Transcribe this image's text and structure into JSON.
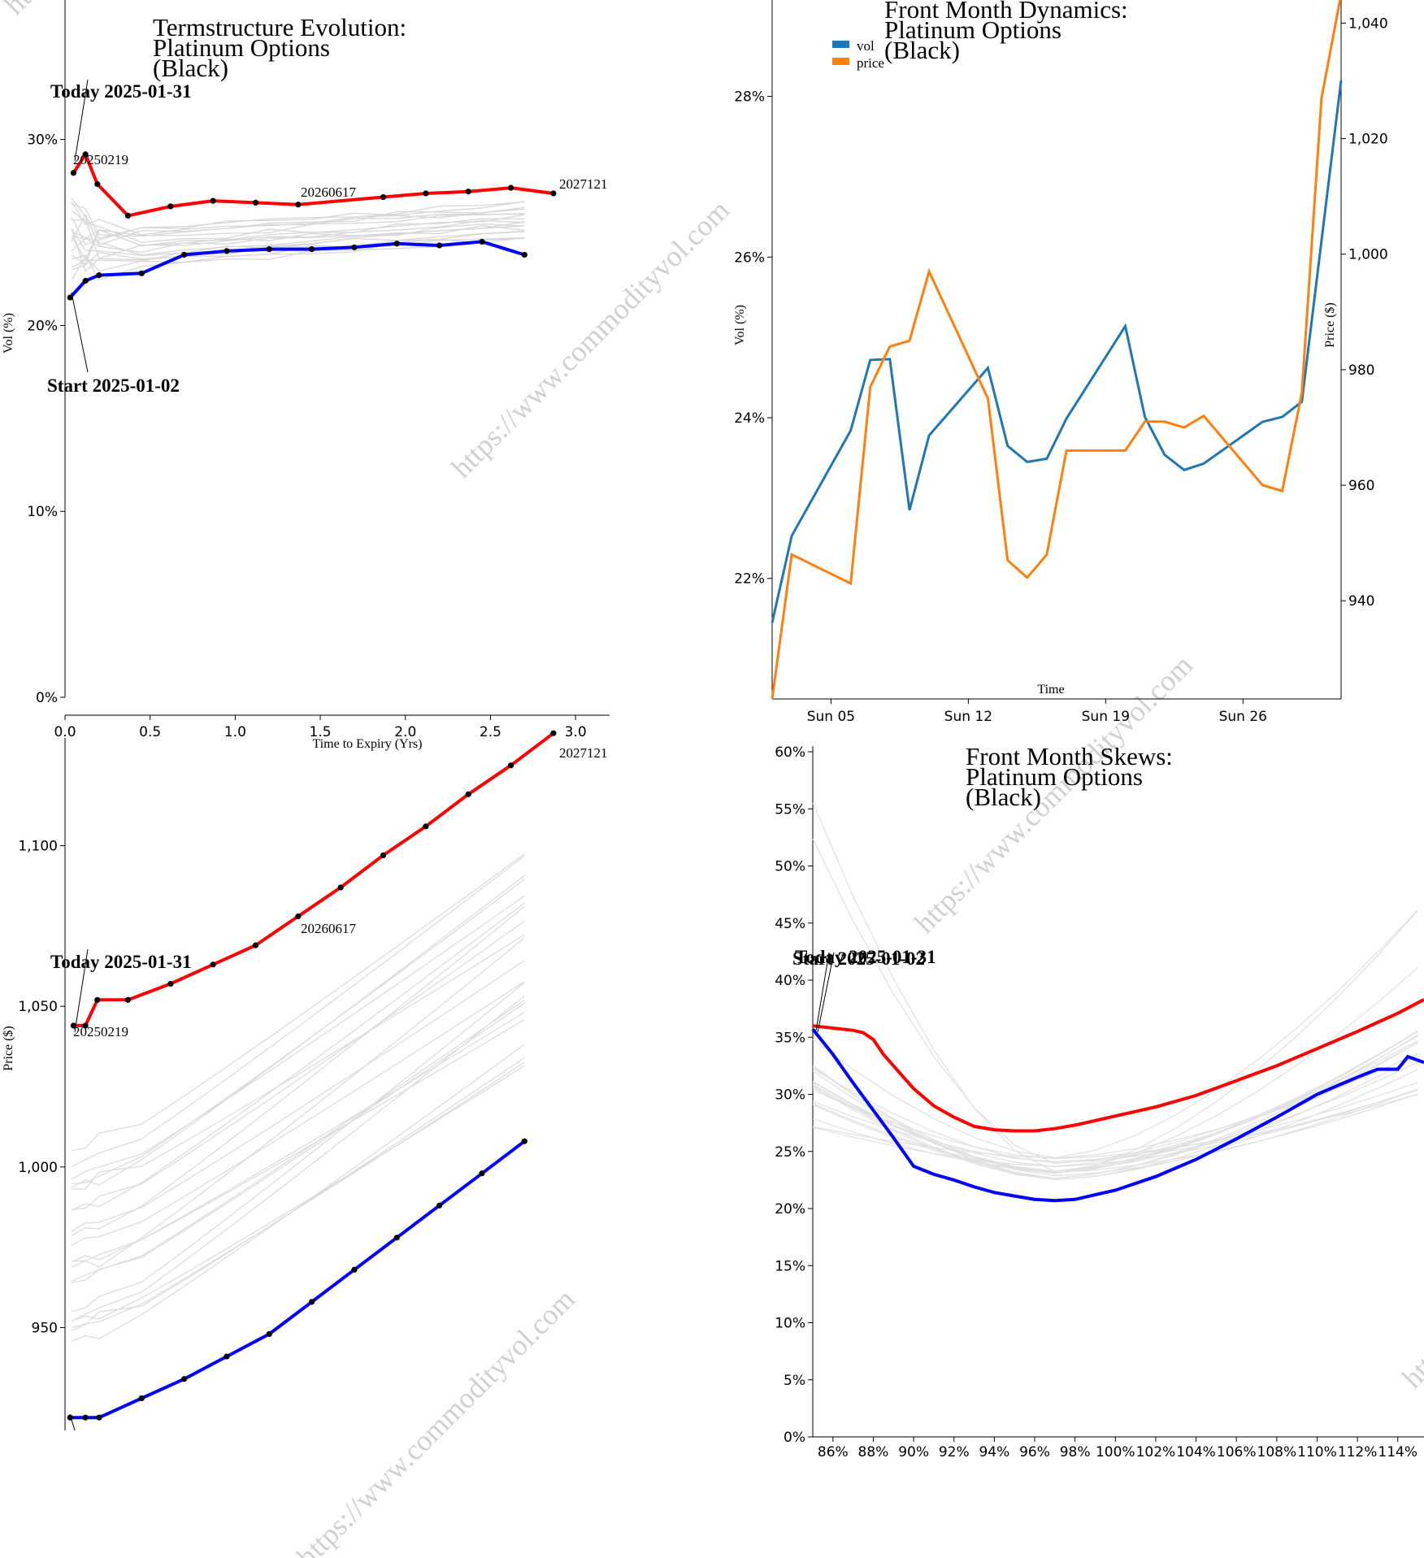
{
  "watermark": "https://www.commodityvol.com",
  "chart_data": [
    {
      "id": "termstructure",
      "type": "line",
      "title": [
        "Termstructure Evolution:",
        "Platinum Options",
        "(Black)"
      ],
      "xlabel": "Time to Expiry (Yrs)",
      "ylabel": "Vol (%)",
      "xlim": [
        0,
        3.2
      ],
      "ylim": [
        0,
        0.375
      ],
      "xticks": [
        0.0,
        0.5,
        1.0,
        1.5,
        2.0,
        2.5,
        3.0
      ],
      "xtick_labels": [
        "0.0",
        "0.5",
        "1.0",
        "1.5",
        "2.0",
        "2.5",
        "3.0"
      ],
      "yticks": [
        0,
        0.1,
        0.2,
        0.3
      ],
      "ytick_labels": [
        "0%",
        "10%",
        "20%",
        "30%"
      ],
      "annotations": {
        "today": "Today 2025-01-31",
        "start": "Start 2025-01-02",
        "first_expiry": "20250219",
        "mid_expiry": "20260617",
        "last_expiry": "2027121"
      },
      "series": [
        {
          "name": "Today 2025-01-31",
          "color": "#ff0000",
          "x": [
            0.05,
            0.12,
            0.19,
            0.37,
            0.62,
            0.87,
            1.12,
            1.37,
            1.87,
            2.12,
            2.37,
            2.62,
            2.87
          ],
          "y": [
            0.282,
            0.292,
            0.276,
            0.259,
            0.264,
            0.267,
            0.266,
            0.265,
            0.269,
            0.271,
            0.272,
            0.274,
            0.271
          ]
        },
        {
          "name": "Start 2025-01-02",
          "color": "#0000ff",
          "x": [
            0.03,
            0.12,
            0.2,
            0.45,
            0.7,
            0.95,
            1.2,
            1.45,
            1.7,
            1.95,
            2.2,
            2.45,
            2.7
          ],
          "y": [
            0.215,
            0.224,
            0.227,
            0.228,
            0.238,
            0.24,
            0.241,
            0.241,
            0.242,
            0.244,
            0.243,
            0.245,
            0.238
          ]
        }
      ]
    },
    {
      "id": "frontmonth",
      "type": "line",
      "title": [
        "Front Month Dynamics:",
        "Platinum Options",
        "(Black)"
      ],
      "xlabel": "Time",
      "ylabel": "Vol (%)",
      "y2label": "Price ($)",
      "xtick_labels": [
        "Sun 05",
        "Sun 12",
        "Sun 19",
        "Sun 26"
      ],
      "xtick_days": [
        5,
        12,
        19,
        26
      ],
      "xlim_days": [
        2,
        31
      ],
      "ylim": [
        0.205,
        0.292
      ],
      "yticks": [
        0.22,
        0.24,
        0.26,
        0.28
      ],
      "ytick_labels": [
        "22%",
        "24%",
        "26%",
        "28%"
      ],
      "y2lim": [
        923,
        1044
      ],
      "y2ticks": [
        940,
        960,
        980,
        1000,
        1020,
        1040
      ],
      "y2tick_labels": [
        "940",
        "960",
        "980",
        "1,000",
        "1,020",
        "1,040"
      ],
      "legend": [
        "vol",
        "price"
      ],
      "series": [
        {
          "name": "vol",
          "color": "#1f77b4",
          "axis": "left",
          "x": [
            2,
            3,
            6,
            7,
            8,
            9,
            10,
            13,
            14,
            15,
            16,
            17,
            20,
            21,
            22,
            23,
            24,
            27,
            28,
            29,
            31
          ],
          "y": [
            0.2145,
            0.2253,
            0.2384,
            0.2472,
            0.2473,
            0.2285,
            0.2378,
            0.2462,
            0.2365,
            0.2345,
            0.2349,
            0.2399,
            0.2514,
            0.2401,
            0.2354,
            0.2335,
            0.2343,
            0.2395,
            0.2401,
            0.242,
            0.282
          ]
        },
        {
          "name": "price",
          "color": "#ff7f0e",
          "axis": "right",
          "x": [
            2,
            3,
            6,
            7,
            8,
            9,
            10,
            13,
            14,
            15,
            16,
            17,
            20,
            21,
            22,
            23,
            24,
            27,
            28,
            29,
            30,
            31
          ],
          "y": [
            923,
            948,
            943,
            977,
            984,
            985,
            997,
            975,
            947,
            944,
            948,
            966,
            966,
            971,
            971,
            970,
            972,
            960,
            959,
            976,
            1027,
            1045
          ]
        }
      ]
    },
    {
      "id": "futurescurve",
      "type": "line",
      "title": [],
      "xlabel": "",
      "ylabel": "Price ($)",
      "ylim": [
        918,
        1131
      ],
      "yticks": [
        950,
        1000,
        1050,
        1100
      ],
      "ytick_labels": [
        "950",
        "1,000",
        "1,050",
        "1,100"
      ],
      "annotations": {
        "today": "Today 2025-01-31",
        "first_expiry": "20250219",
        "mid_expiry": "20260617",
        "last_expiry": "2027121"
      },
      "series": [
        {
          "name": "Today 2025-01-31",
          "color": "#ff0000",
          "x": [
            0.05,
            0.12,
            0.19,
            0.37,
            0.62,
            0.87,
            1.12,
            1.37,
            1.62,
            1.87,
            2.12,
            2.37,
            2.62,
            2.87
          ],
          "y": [
            1044,
            1044,
            1052,
            1052,
            1057,
            1063,
            1069,
            1078,
            1087,
            1097,
            1106,
            1116,
            1125,
            1135
          ]
        },
        {
          "name": "Start 2025-01-02",
          "color": "#0000ff",
          "x": [
            0.03,
            0.12,
            0.2,
            0.45,
            0.7,
            0.95,
            1.2,
            1.45,
            1.7,
            1.95,
            2.2,
            2.45,
            2.7
          ],
          "y": [
            922,
            922,
            922,
            928,
            934,
            941,
            948,
            958,
            968,
            978,
            988,
            998,
            1008
          ]
        }
      ]
    },
    {
      "id": "skew",
      "type": "line",
      "title": [
        "Front Month Skews:",
        "Platinum Options",
        "(Black)"
      ],
      "xlabel": "",
      "ylabel": "",
      "xlim": [
        0.85,
        1.153
      ],
      "ylim": [
        0,
        0.605
      ],
      "xticks": [
        0.86,
        0.88,
        0.9,
        0.92,
        0.94,
        0.96,
        0.98,
        1.0,
        1.02,
        1.04,
        1.06,
        1.08,
        1.1,
        1.12,
        1.14
      ],
      "xtick_labels": [
        "86%",
        "88%",
        "90%",
        "92%",
        "94%",
        "96%",
        "98%",
        "100%",
        "102%",
        "104%",
        "106%",
        "108%",
        "110%",
        "112%",
        "114%"
      ],
      "yticks": [
        0,
        0.05,
        0.1,
        0.15,
        0.2,
        0.25,
        0.3,
        0.35,
        0.4,
        0.45,
        0.5,
        0.55,
        0.6
      ],
      "ytick_labels": [
        "0%",
        "5%",
        "10%",
        "15%",
        "20%",
        "25%",
        "30%",
        "35%",
        "40%",
        "45%",
        "50%",
        "55%",
        "60%"
      ],
      "annotations": {
        "today": "Today 2025-01-31",
        "start": "Start 2025-01-02"
      },
      "series": [
        {
          "name": "Today 2025-01-31",
          "color": "#ff0000",
          "x": [
            0.85,
            0.86,
            0.87,
            0.875,
            0.88,
            0.885,
            0.89,
            0.9,
            0.91,
            0.92,
            0.93,
            0.94,
            0.95,
            0.96,
            0.97,
            0.98,
            0.99,
            1.0,
            1.02,
            1.04,
            1.06,
            1.08,
            1.1,
            1.12,
            1.13,
            1.14,
            1.153
          ],
          "y": [
            0.36,
            0.358,
            0.356,
            0.354,
            0.348,
            0.335,
            0.325,
            0.305,
            0.29,
            0.28,
            0.272,
            0.269,
            0.268,
            0.268,
            0.27,
            0.273,
            0.277,
            0.281,
            0.289,
            0.299,
            0.312,
            0.325,
            0.34,
            0.355,
            0.363,
            0.371,
            0.383
          ]
        },
        {
          "name": "Start 2025-01-02",
          "color": "#0000ff",
          "x": [
            0.85,
            0.86,
            0.87,
            0.88,
            0.89,
            0.9,
            0.91,
            0.92,
            0.93,
            0.94,
            0.95,
            0.96,
            0.97,
            0.98,
            0.99,
            1.0,
            1.02,
            1.04,
            1.06,
            1.08,
            1.1,
            1.12,
            1.13,
            1.14,
            1.145,
            1.153
          ],
          "y": [
            0.357,
            0.335,
            0.31,
            0.286,
            0.262,
            0.237,
            0.23,
            0.225,
            0.219,
            0.214,
            0.211,
            0.208,
            0.207,
            0.208,
            0.212,
            0.216,
            0.228,
            0.243,
            0.261,
            0.28,
            0.3,
            0.315,
            0.322,
            0.322,
            0.333,
            0.328
          ]
        }
      ]
    }
  ]
}
